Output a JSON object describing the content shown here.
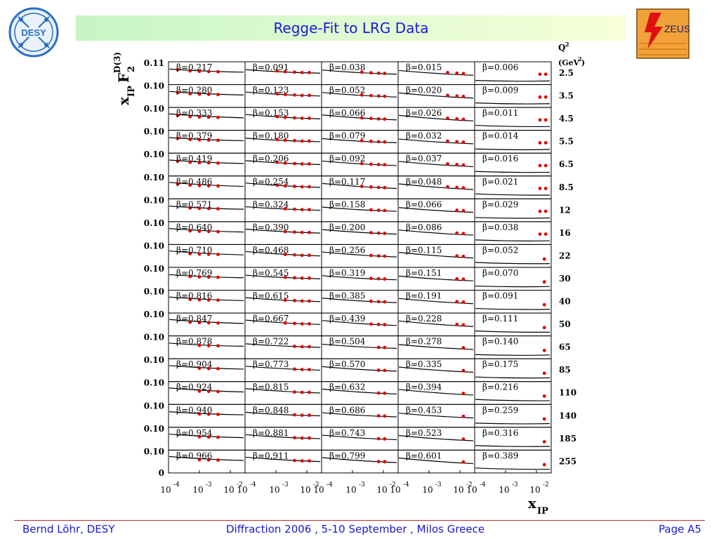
{
  "title": "Regge-Fit to LRG Data",
  "footer": {
    "left": "Bernd Löhr, DESY",
    "center": "Diffraction 2006 ,  5-10 September ,  Milos Greece",
    "right": "Page A5"
  },
  "logos": {
    "left": "DESY",
    "right": "ZEUS"
  },
  "colors": {
    "title": "#1a1ad2",
    "points": "#e00000",
    "fit": "#000000",
    "title_bar": "#d6f8cc"
  },
  "chart_data": {
    "type": "scatter",
    "ylabel": {
      "main": "x",
      "sub": "IP",
      "F": "F",
      "sup": "D(3)",
      "sub2": "2"
    },
    "xlabel": {
      "main": "x",
      "sub": "IP"
    },
    "q2_header": {
      "line1": "Q",
      "line1_sup": "2",
      "line2": "(GeV",
      "line2_sup": "2",
      "line2_end": ")"
    },
    "xscale": "log",
    "xlim": [
      0.0001,
      0.03
    ],
    "ylim": [
      0,
      0.11
    ],
    "ytick_labels": [
      "0.11",
      "0.10",
      "0.10",
      "0.10",
      "0.10",
      "0.10",
      "0.10",
      "0.10",
      "0.10",
      "0.10",
      "0.10",
      "0.10",
      "0.10",
      "0.10",
      "0.10",
      "0.10",
      "0.10",
      "0.10"
    ],
    "y_zero_label": "0",
    "xtick_labels": [
      {
        "base": "10",
        "exp": "-4"
      },
      {
        "base": "10",
        "exp": "-3"
      },
      {
        "base": "10",
        "exp": "-2"
      }
    ],
    "q2_values": [
      "2.5",
      "3.5",
      "4.5",
      "5.5",
      "6.5",
      "8.5",
      "12",
      "16",
      "22",
      "30",
      "40",
      "50",
      "65",
      "85",
      "110",
      "140",
      "185",
      "255"
    ],
    "beta_prefix": "β=",
    "beta_values": [
      [
        "0.217",
        "0.091",
        "0.038",
        "0.015",
        "0.006"
      ],
      [
        "0.280",
        "0.123",
        "0.052",
        "0.020",
        "0.009"
      ],
      [
        "0.333",
        "0.153",
        "0.066",
        "0.026",
        "0.011"
      ],
      [
        "0.379",
        "0.180",
        "0.079",
        "0.032",
        "0.014"
      ],
      [
        "0.419",
        "0.206",
        "0.092",
        "0.037",
        "0.016"
      ],
      [
        "0.486",
        "0.254",
        "0.117",
        "0.048",
        "0.021"
      ],
      [
        "0.571",
        "0.324",
        "0.158",
        "0.066",
        "0.029"
      ],
      [
        "0.640",
        "0.390",
        "0.200",
        "0.086",
        "0.038"
      ],
      [
        "0.710",
        "0.468",
        "0.256",
        "0.115",
        "0.052"
      ],
      [
        "0.769",
        "0.545",
        "0.319",
        "0.151",
        "0.070"
      ],
      [
        "0.816",
        "0.615",
        "0.385",
        "0.191",
        "0.091"
      ],
      [
        "0.847",
        "0.667",
        "0.439",
        "0.228",
        "0.111"
      ],
      [
        "0.878",
        "0.722",
        "0.504",
        "0.278",
        "0.140"
      ],
      [
        "0.904",
        "0.773",
        "0.570",
        "0.335",
        "0.175"
      ],
      [
        "0.924",
        "0.815",
        "0.632",
        "0.394",
        "0.216"
      ],
      [
        "0.940",
        "0.848",
        "0.686",
        "0.453",
        "0.259"
      ],
      [
        "0.954",
        "0.881",
        "0.743",
        "0.523",
        "0.316"
      ],
      [
        "0.966",
        "0.911",
        "0.799",
        "0.601",
        "0.389"
      ]
    ],
    "fit_curves": {
      "0": {
        "ystart": 0.075,
        "yend": 0.06
      },
      "1": {
        "ystart": 0.072,
        "yend": 0.055
      },
      "2": {
        "ystart": 0.07,
        "yend": 0.05
      },
      "3": {
        "ystart": 0.068,
        "yend": 0.045
      },
      "4": {
        "ystart": 0.02,
        "yend": 0.018
      }
    },
    "points": {
      "default_col0": [
        [
          0.0002,
          0.072
        ],
        [
          0.0005,
          0.066
        ],
        [
          0.001,
          0.064
        ],
        [
          0.002,
          0.063
        ],
        [
          0.004,
          0.062
        ]
      ],
      "default_col1": [
        [
          0.0011,
          0.066
        ],
        [
          0.002,
          0.062
        ],
        [
          0.004,
          0.06
        ],
        [
          0.007,
          0.058
        ],
        [
          0.012,
          0.058
        ]
      ],
      "default_col2": [
        [
          0.002,
          0.06
        ],
        [
          0.004,
          0.057
        ],
        [
          0.007,
          0.055
        ],
        [
          0.011,
          0.054
        ]
      ],
      "default_col3": [
        [
          0.004,
          0.058
        ],
        [
          0.008,
          0.055
        ],
        [
          0.013,
          0.053
        ]
      ],
      "col4_pairs": [
        [
          0.013,
          0.05
        ],
        [
          0.02,
          0.05
        ]
      ],
      "col4_single": [
        [
          0.018,
          0.04
        ]
      ]
    }
  }
}
